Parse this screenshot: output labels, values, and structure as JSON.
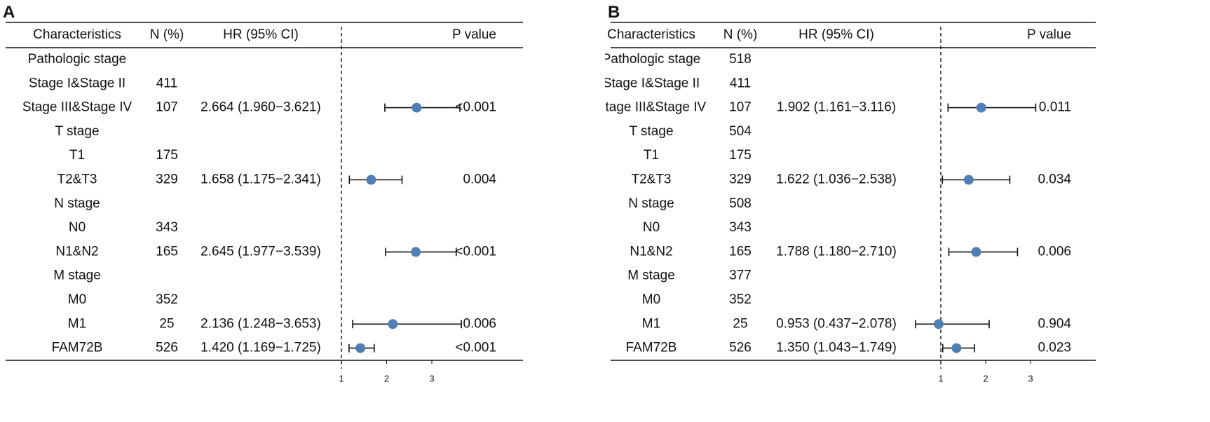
{
  "chart_data": [
    {
      "type": "forest",
      "panel_label": "A",
      "headers": {
        "characteristics": "Characteristics",
        "n": "N (%)",
        "hr": "HR (95% CI)",
        "p": "P value"
      },
      "rows": [
        {
          "label": "Pathologic stage",
          "n": "",
          "hr_text": "",
          "p": "",
          "hr": null,
          "lo": null,
          "hi": null
        },
        {
          "label": "Stage I&Stage II",
          "n": "411",
          "hr_text": "",
          "p": "",
          "hr": null,
          "lo": null,
          "hi": null
        },
        {
          "label": "Stage III&Stage IV",
          "n": "107",
          "hr_text": "2.664 (1.960−3.621)",
          "p": "<0.001",
          "hr": 2.664,
          "lo": 1.96,
          "hi": 3.621
        },
        {
          "label": "T stage",
          "n": "",
          "hr_text": "",
          "p": "",
          "hr": null,
          "lo": null,
          "hi": null
        },
        {
          "label": "T1",
          "n": "175",
          "hr_text": "",
          "p": "",
          "hr": null,
          "lo": null,
          "hi": null
        },
        {
          "label": "T2&T3",
          "n": "329",
          "hr_text": "1.658 (1.175−2.341)",
          "p": "0.004",
          "hr": 1.658,
          "lo": 1.175,
          "hi": 2.341
        },
        {
          "label": "N stage",
          "n": "",
          "hr_text": "",
          "p": "",
          "hr": null,
          "lo": null,
          "hi": null
        },
        {
          "label": "N0",
          "n": "343",
          "hr_text": "",
          "p": "",
          "hr": null,
          "lo": null,
          "hi": null
        },
        {
          "label": "N1&N2",
          "n": "165",
          "hr_text": "2.645 (1.977−3.539)",
          "p": "<0.001",
          "hr": 2.645,
          "lo": 1.977,
          "hi": 3.539
        },
        {
          "label": "M stage",
          "n": "",
          "hr_text": "",
          "p": "",
          "hr": null,
          "lo": null,
          "hi": null
        },
        {
          "label": "M0",
          "n": "352",
          "hr_text": "",
          "p": "",
          "hr": null,
          "lo": null,
          "hi": null
        },
        {
          "label": "M1",
          "n": "25",
          "hr_text": "2.136 (1.248−3.653)",
          "p": "0.006",
          "hr": 2.136,
          "lo": 1.248,
          "hi": 3.653
        },
        {
          "label": "FAM72B",
          "n": "526",
          "hr_text": "1.420 (1.169−1.725)",
          "p": "<0.001",
          "hr": 1.42,
          "lo": 1.169,
          "hi": 1.725
        }
      ],
      "x_ticks": [
        1,
        2,
        3
      ],
      "xlim": [
        1,
        3.7
      ],
      "reference_line": 1
    },
    {
      "type": "forest",
      "panel_label": "B",
      "headers": {
        "characteristics": "Characteristics",
        "n": "N (%)",
        "hr": "HR (95% CI)",
        "p": "P value"
      },
      "rows": [
        {
          "label": "Pathologic stage",
          "n": "518",
          "hr_text": "",
          "p": "",
          "hr": null,
          "lo": null,
          "hi": null
        },
        {
          "label": "Stage I&Stage II",
          "n": "411",
          "hr_text": "",
          "p": "",
          "hr": null,
          "lo": null,
          "hi": null
        },
        {
          "label": "Stage III&Stage IV",
          "n": "107",
          "hr_text": "1.902 (1.161−3.116)",
          "p": "0.011",
          "hr": 1.902,
          "lo": 1.161,
          "hi": 3.116
        },
        {
          "label": "T stage",
          "n": "504",
          "hr_text": "",
          "p": "",
          "hr": null,
          "lo": null,
          "hi": null
        },
        {
          "label": "T1",
          "n": "175",
          "hr_text": "",
          "p": "",
          "hr": null,
          "lo": null,
          "hi": null
        },
        {
          "label": "T2&T3",
          "n": "329",
          "hr_text": "1.622 (1.036−2.538)",
          "p": "0.034",
          "hr": 1.622,
          "lo": 1.036,
          "hi": 2.538
        },
        {
          "label": "N stage",
          "n": "508",
          "hr_text": "",
          "p": "",
          "hr": null,
          "lo": null,
          "hi": null
        },
        {
          "label": "N0",
          "n": "343",
          "hr_text": "",
          "p": "",
          "hr": null,
          "lo": null,
          "hi": null
        },
        {
          "label": "N1&N2",
          "n": "165",
          "hr_text": "1.788 (1.180−2.710)",
          "p": "0.006",
          "hr": 1.788,
          "lo": 1.18,
          "hi": 2.71
        },
        {
          "label": "M stage",
          "n": "377",
          "hr_text": "",
          "p": "",
          "hr": null,
          "lo": null,
          "hi": null
        },
        {
          "label": "M0",
          "n": "352",
          "hr_text": "",
          "p": "",
          "hr": null,
          "lo": null,
          "hi": null
        },
        {
          "label": "M1",
          "n": "25",
          "hr_text": "0.953 (0.437−2.078)",
          "p": "0.904",
          "hr": 0.953,
          "lo": 0.437,
          "hi": 2.078
        },
        {
          "label": "FAM72B",
          "n": "526",
          "hr_text": "1.350 (1.043−1.749)",
          "p": "0.023",
          "hr": 1.35,
          "lo": 1.043,
          "hi": 1.749
        }
      ],
      "x_ticks": [
        1,
        2,
        3
      ],
      "xlim": [
        0.4,
        3.3
      ],
      "reference_line": 1
    }
  ],
  "colors": {
    "point": "#4f7fb4",
    "line": "#111111"
  }
}
